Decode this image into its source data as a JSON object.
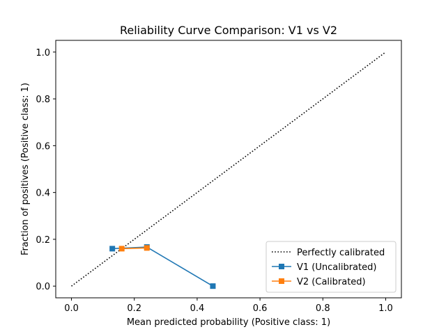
{
  "chart_data": {
    "type": "line",
    "title": "Reliability Curve Comparison: V1 vs V2",
    "xlabel": "Mean predicted probability (Positive class: 1)",
    "ylabel": "Fraction of positives (Positive class: 1)",
    "xlim": [
      -0.05,
      1.05
    ],
    "ylim": [
      -0.05,
      1.05
    ],
    "xticks": [
      "0.0",
      "0.2",
      "0.4",
      "0.6",
      "0.8",
      "1.0"
    ],
    "yticks": [
      "0.0",
      "0.2",
      "0.4",
      "0.6",
      "0.8",
      "1.0"
    ],
    "grid": false,
    "legend_position": "lower-right",
    "series": [
      {
        "name": "Perfectly calibrated",
        "style": "dotted",
        "marker": "none",
        "color": "#000000",
        "x": [
          0.0,
          1.0
        ],
        "y": [
          0.0,
          1.0
        ]
      },
      {
        "name": "V1 (Uncalibrated)",
        "style": "solid",
        "marker": "square",
        "color": "#1f77b4",
        "x": [
          0.13,
          0.24,
          0.45
        ],
        "y": [
          0.16,
          0.167,
          0.0
        ]
      },
      {
        "name": "V2 (Calibrated)",
        "style": "solid",
        "marker": "square",
        "color": "#ff7f0e",
        "x": [
          0.16,
          0.24
        ],
        "y": [
          0.16,
          0.163
        ]
      }
    ]
  }
}
